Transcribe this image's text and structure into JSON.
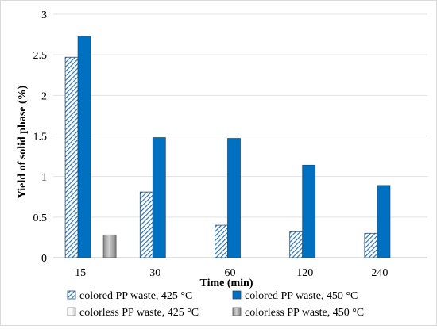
{
  "chart_data": {
    "type": "bar",
    "title": "",
    "xlabel": "Time (min)",
    "ylabel": "Yield of solid phase (%)",
    "ylim": [
      0,
      3
    ],
    "y_ticks": [
      0,
      0.5,
      1,
      1.5,
      2,
      2.5,
      3
    ],
    "y_tick_labels": [
      "0",
      "0.5",
      "1",
      "1.5",
      "2",
      "2.5",
      "3"
    ],
    "categories": [
      "15",
      "30",
      "60",
      "120",
      "240"
    ],
    "grid": true,
    "legend_position": "bottom",
    "series": [
      {
        "name": "colored PP waste, 425 °C",
        "pattern": "hatched",
        "color": "#2e75b6",
        "values": [
          2.47,
          0.81,
          0.4,
          0.32,
          0.3
        ]
      },
      {
        "name": "colored PP waste, 450 °C",
        "pattern": "solid",
        "color": "#0070c0",
        "values": [
          2.73,
          1.48,
          1.47,
          1.14,
          0.89
        ]
      },
      {
        "name": "colorless PP waste, 425 °C",
        "pattern": "gradient-light",
        "color": "#d9d9d9",
        "values": [
          null,
          null,
          null,
          null,
          null
        ]
      },
      {
        "name": "colorless PP waste, 450 °C",
        "pattern": "gradient-dark",
        "color": "#a6a6a6",
        "values": [
          0.28,
          null,
          null,
          null,
          null
        ]
      }
    ]
  }
}
